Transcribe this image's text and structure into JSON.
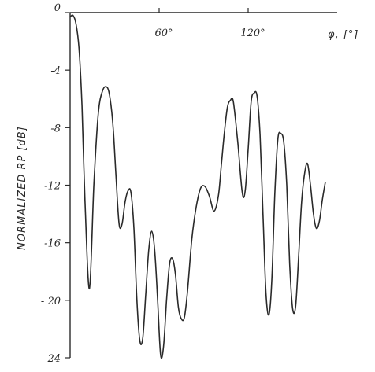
{
  "chart_data": {
    "type": "line",
    "title": "",
    "xlabel": "φ, [°]",
    "ylabel": "NORMALIZED RP [dB]",
    "xlim": [
      0,
      180
    ],
    "ylim": [
      -24,
      0
    ],
    "grid": false,
    "legend": "none",
    "x_ticks": [
      {
        "value": 60,
        "label": "60°"
      },
      {
        "value": 120,
        "label": "120°"
      }
    ],
    "y_ticks": [
      {
        "value": 0,
        "label": "0"
      },
      {
        "value": -4,
        "label": "-4"
      },
      {
        "value": -8,
        "label": "-8"
      },
      {
        "value": -12,
        "label": "-12"
      },
      {
        "value": -16,
        "label": "-16"
      },
      {
        "value": -20,
        "label": "- 20"
      },
      {
        "value": -24,
        "label": "-24"
      }
    ],
    "series": [
      {
        "x": [
          0,
          2,
          4,
          6,
          8,
          10,
          13,
          16,
          19,
          22,
          25,
          27,
          29,
          31,
          33,
          35,
          37,
          39,
          41,
          43,
          45,
          47,
          49,
          51,
          53,
          55,
          57,
          59,
          61,
          63,
          65,
          67,
          69,
          71,
          73,
          75,
          77,
          79,
          82,
          85,
          88,
          91,
          94,
          97,
          100,
          102,
          104,
          106,
          108,
          110,
          113,
          116,
          118,
          120,
          122,
          124,
          126,
          128,
          130,
          132,
          134,
          136,
          138,
          140,
          142,
          144,
          146,
          148,
          150,
          152,
          154,
          156,
          158,
          160,
          162,
          164,
          166,
          168,
          170,
          172
        ],
        "values": [
          -0.3,
          -0.2,
          -0.8,
          -2.5,
          -6.5,
          -13,
          -19.2,
          -12,
          -7,
          -5.4,
          -5.2,
          -6,
          -8,
          -11.5,
          -14.7,
          -14.7,
          -13.2,
          -12.4,
          -12.5,
          -15,
          -20,
          -22.8,
          -22.6,
          -19.5,
          -16.5,
          -15.2,
          -16.5,
          -20,
          -23.8,
          -23.2,
          -20,
          -17.5,
          -17.1,
          -18.2,
          -20.5,
          -21.3,
          -21.2,
          -19.5,
          -15.8,
          -13.5,
          -12.2,
          -12.1,
          -12.8,
          -13.8,
          -12.7,
          -10.5,
          -8.3,
          -6.6,
          -6.1,
          -6.2,
          -9,
          -12.5,
          -12.4,
          -9.5,
          -6.2,
          -5.6,
          -5.8,
          -8.5,
          -14,
          -19.5,
          -21,
          -18.5,
          -12.5,
          -8.8,
          -8.4,
          -9,
          -12,
          -17.5,
          -20.6,
          -20.4,
          -17,
          -13.2,
          -11.2,
          -10.5,
          -12,
          -14,
          -15,
          -14.5,
          -13,
          -11.8
        ]
      }
    ]
  }
}
